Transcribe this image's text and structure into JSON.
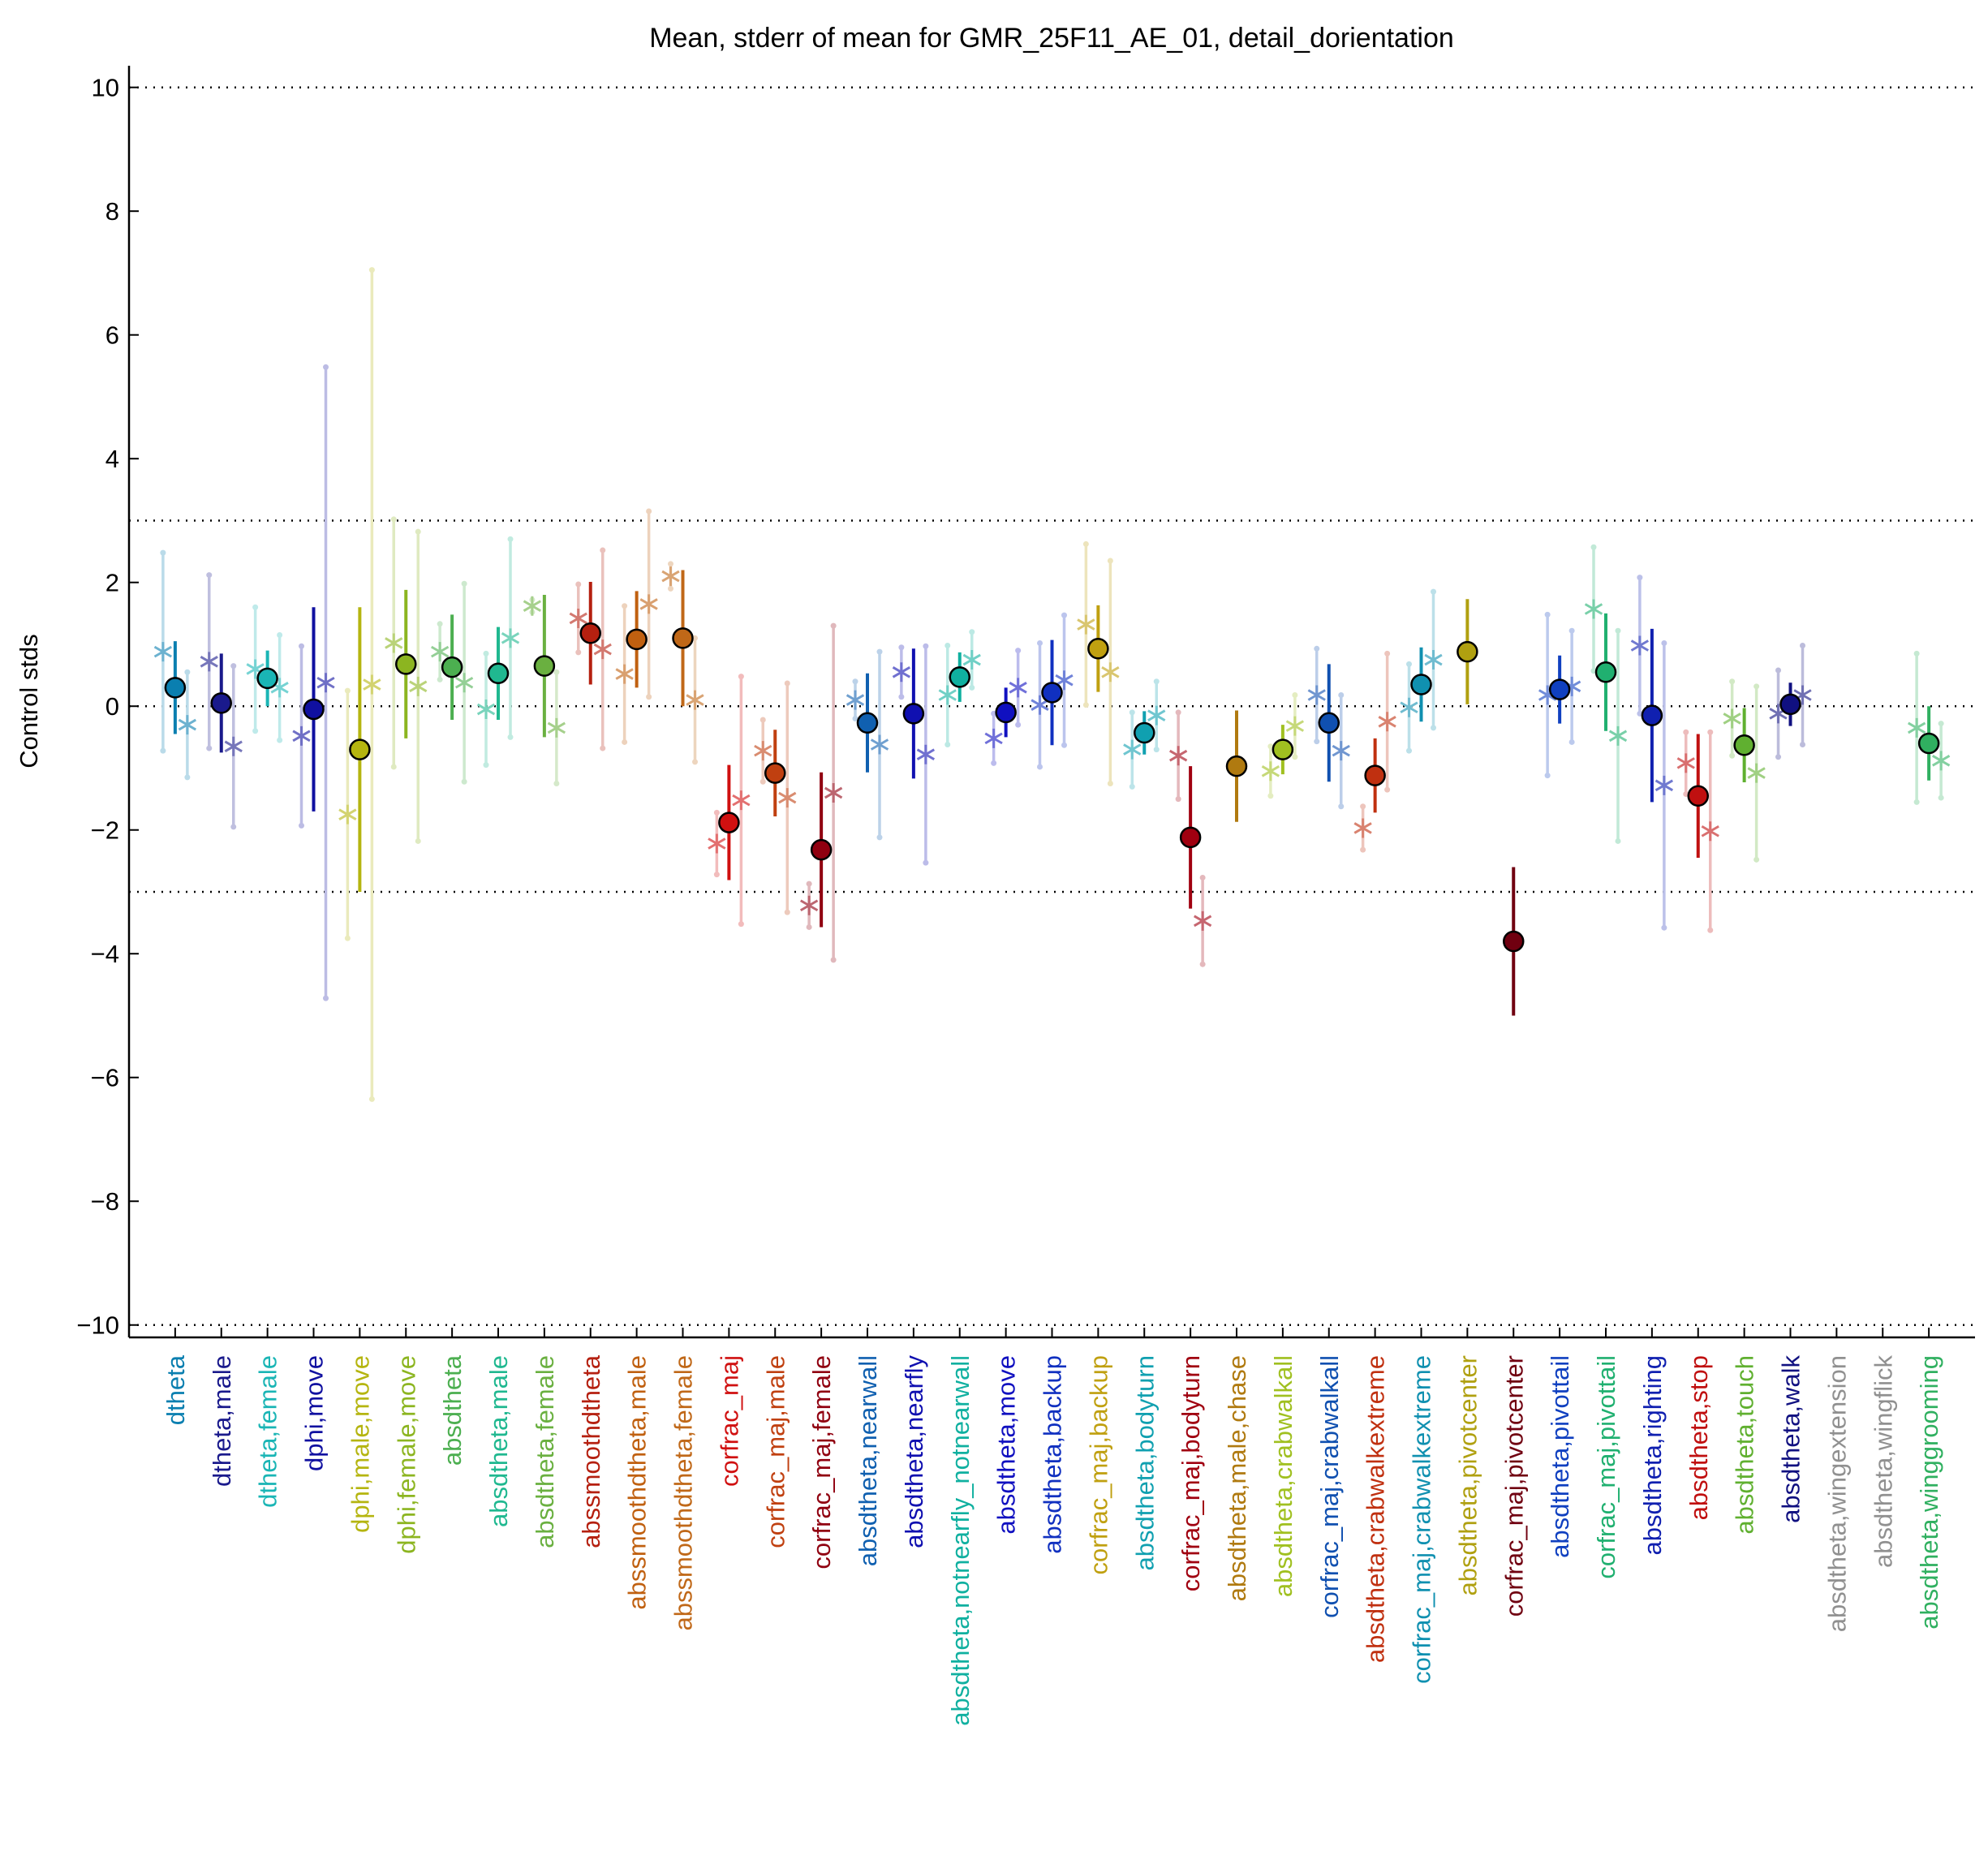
{
  "chart_data": {
    "type": "errorbar",
    "title": "Mean, stderr of mean for GMR_25F11_AE_01, detail_dorientation",
    "y_label": "Control stds",
    "categories": [
      "dtheta",
      "dtheta,male",
      "dtheta,female",
      "dphi,move",
      "dphi,male,move",
      "dphi,female,move",
      "absdtheta",
      "absdtheta,male",
      "absdtheta,female",
      "abssmoothdtheta",
      "abssmoothdtheta,male",
      "abssmoothdtheta,female",
      "corfrac_maj",
      "corfrac_maj,male",
      "corfrac_maj,female",
      "absdtheta,nearwall",
      "absdtheta,nearfly",
      "absdtheta,notnearfly_notnearwall",
      "absdtheta,move",
      "absdtheta,backup",
      "corfrac_maj,backup",
      "absdtheta,bodyturn",
      "corfrac_maj,bodyturn",
      "absdtheta,male,chase",
      "absdtheta,crabwalkall",
      "corfrac_maj,crabwalkall",
      "absdtheta,crabwalkextreme",
      "corfrac_maj,crabwalkextreme",
      "absdtheta,pivotcenter",
      "corfrac_maj,pivotcenter",
      "absdtheta,pivottail",
      "corfrac_maj,pivottail",
      "absdtheta,righting",
      "absdtheta,stop",
      "absdtheta,touch",
      "absdtheta,walk",
      "absdtheta,wingextension",
      "absdtheta,wingflick",
      "absdtheta,winggrooming"
    ],
    "colors": [
      "#0a7fb0",
      "#1a1a8c",
      "#1ab5b5",
      "#1010a0",
      "#b5b510",
      "#8cb520",
      "#4caf50",
      "#20b890",
      "#6ab040",
      "#b52010",
      "#c06010",
      "#c06818",
      "#d01010",
      "#c04010",
      "#900010",
      "#1060b0",
      "#1010b0",
      "#10b0a0",
      "#1010c0",
      "#1030c0",
      "#c0a010",
      "#10a0b0",
      "#a00010",
      "#b07a10",
      "#a0c020",
      "#1050b0",
      "#c03010",
      "#1090b0",
      "#b0a010",
      "#700010",
      "#1040c0",
      "#20b070",
      "#1020b0",
      "#c01010",
      "#60b030",
      "#101080",
      "#909090",
      "#909090",
      "#30b060"
    ],
    "means": [
      0.3,
      0.05,
      0.45,
      -0.05,
      -0.7,
      0.68,
      0.63,
      0.53,
      0.65,
      1.18,
      1.08,
      1.1,
      -1.88,
      -1.08,
      -2.32,
      -0.27,
      -0.12,
      0.47,
      -0.1,
      0.22,
      0.93,
      -0.43,
      -2.12,
      -0.97,
      -0.7,
      -0.27,
      -1.12,
      0.35,
      0.88,
      -3.8,
      0.27,
      0.55,
      -0.15,
      -1.45,
      -0.63,
      0.03,
      null,
      null,
      -0.6
    ],
    "mean_errors": [
      0.75,
      0.8,
      0.45,
      1.65,
      2.3,
      1.2,
      0.85,
      0.75,
      1.15,
      0.83,
      0.78,
      1.1,
      0.93,
      0.7,
      1.25,
      0.8,
      1.05,
      0.4,
      0.4,
      0.85,
      0.7,
      0.35,
      1.15,
      0.9,
      0.4,
      0.95,
      0.6,
      0.6,
      0.85,
      1.2,
      0.55,
      0.95,
      1.4,
      1.0,
      0.6,
      0.35,
      null,
      null,
      0.6
    ],
    "male_values": [
      0.88,
      0.72,
      0.6,
      -0.48,
      -1.75,
      1.02,
      0.88,
      -0.05,
      1.62,
      1.42,
      0.52,
      2.1,
      -2.22,
      -0.72,
      -3.22,
      0.1,
      0.55,
      0.18,
      -0.52,
      0.02,
      1.32,
      -0.7,
      -0.8,
      null,
      -1.05,
      0.18,
      -1.97,
      -0.02,
      null,
      null,
      0.18,
      1.57,
      0.98,
      -0.92,
      -0.2,
      -0.12,
      null,
      null,
      -0.35
    ],
    "male_errors": [
      1.6,
      1.4,
      1.0,
      1.45,
      2.0,
      2.0,
      0.45,
      0.9,
      0.1,
      0.55,
      1.1,
      0.2,
      0.5,
      0.5,
      0.35,
      0.3,
      0.4,
      0.8,
      0.4,
      1.0,
      1.3,
      0.6,
      0.7,
      null,
      0.4,
      0.75,
      0.35,
      0.7,
      null,
      null,
      1.3,
      1.0,
      1.1,
      0.5,
      0.6,
      0.7,
      null,
      null,
      1.2
    ],
    "female_values": [
      -0.3,
      -0.65,
      0.3,
      0.38,
      0.35,
      0.32,
      0.38,
      1.1,
      -0.35,
      0.92,
      1.65,
      0.1,
      -1.52,
      -1.48,
      -1.4,
      -0.62,
      -0.78,
      0.75,
      0.3,
      0.42,
      0.55,
      -0.15,
      -3.47,
      null,
      -0.32,
      -0.72,
      -0.25,
      0.75,
      null,
      null,
      0.32,
      -0.48,
      -1.28,
      -2.02,
      -1.08,
      0.18,
      null,
      null,
      -0.88
    ],
    "female_errors": [
      0.85,
      1.3,
      0.85,
      5.1,
      6.7,
      2.5,
      1.6,
      1.6,
      0.9,
      1.6,
      1.5,
      1.0,
      2.0,
      1.85,
      2.7,
      1.5,
      1.75,
      0.45,
      0.6,
      1.05,
      1.8,
      0.55,
      0.7,
      null,
      0.5,
      0.9,
      1.1,
      1.1,
      null,
      null,
      0.9,
      1.7,
      2.3,
      1.6,
      1.4,
      0.8,
      null,
      null,
      0.6
    ],
    "xlim": [
      0,
      40
    ],
    "ylim": [
      -10.2,
      10.35
    ],
    "yticks": [
      {
        "value": -10,
        "label": "−10"
      },
      {
        "value": -8,
        "label": "−8"
      },
      {
        "value": -6,
        "label": "−6"
      },
      {
        "value": -4,
        "label": "−4"
      },
      {
        "value": -2,
        "label": "−2"
      },
      0,
      2,
      4,
      6,
      8,
      10
    ],
    "reference_lines": [
      10,
      3,
      0,
      -3,
      -10
    ]
  }
}
